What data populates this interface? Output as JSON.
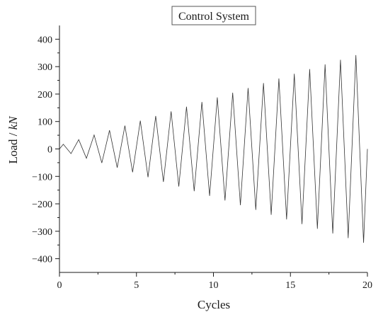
{
  "chart_data": {
    "type": "line",
    "title": "Control System",
    "xlabel": "Cycles",
    "ylabel_prefix": "Load / ",
    "ylabel_unit": "kN",
    "xlim": [
      0,
      20
    ],
    "ylim": [
      -450,
      450
    ],
    "xticks": [
      0,
      5,
      10,
      15,
      20
    ],
    "xtick_labels": [
      "0",
      "5",
      "10",
      "15",
      "20"
    ],
    "yticks": [
      -400,
      -300,
      -200,
      -100,
      0,
      100,
      200,
      300,
      400
    ],
    "ytick_labels": [
      "−400",
      "−300",
      "−200",
      "−100",
      "0",
      "100",
      "200",
      "300",
      "400"
    ],
    "grid": false,
    "line_color": "#333333",
    "series": [
      {
        "x": [
          0,
          0.25,
          0.75,
          1.25,
          1.75,
          2.25,
          2.75,
          3.25,
          3.75,
          4.25,
          4.75,
          5.25,
          5.75,
          6.25,
          6.75,
          7.25,
          7.75,
          8.25,
          8.75,
          9.25,
          9.75,
          10.25,
          10.75,
          11.25,
          11.75,
          12.25,
          12.75,
          13.25,
          13.75,
          14.25,
          14.75,
          15.25,
          15.75,
          16.25,
          16.75,
          17.25,
          17.75,
          18.25,
          18.75,
          19.25,
          19.75,
          20
        ],
        "y": [
          0,
          17,
          -17,
          34,
          -34,
          51,
          -51,
          68,
          -68,
          85,
          -85,
          103,
          -103,
          120,
          -120,
          137,
          -137,
          154,
          -154,
          171,
          -171,
          188,
          -188,
          205,
          -205,
          222,
          -222,
          240,
          -240,
          257,
          -257,
          274,
          -274,
          291,
          -291,
          308,
          -308,
          325,
          -325,
          342,
          -342,
          0
        ]
      }
    ]
  }
}
